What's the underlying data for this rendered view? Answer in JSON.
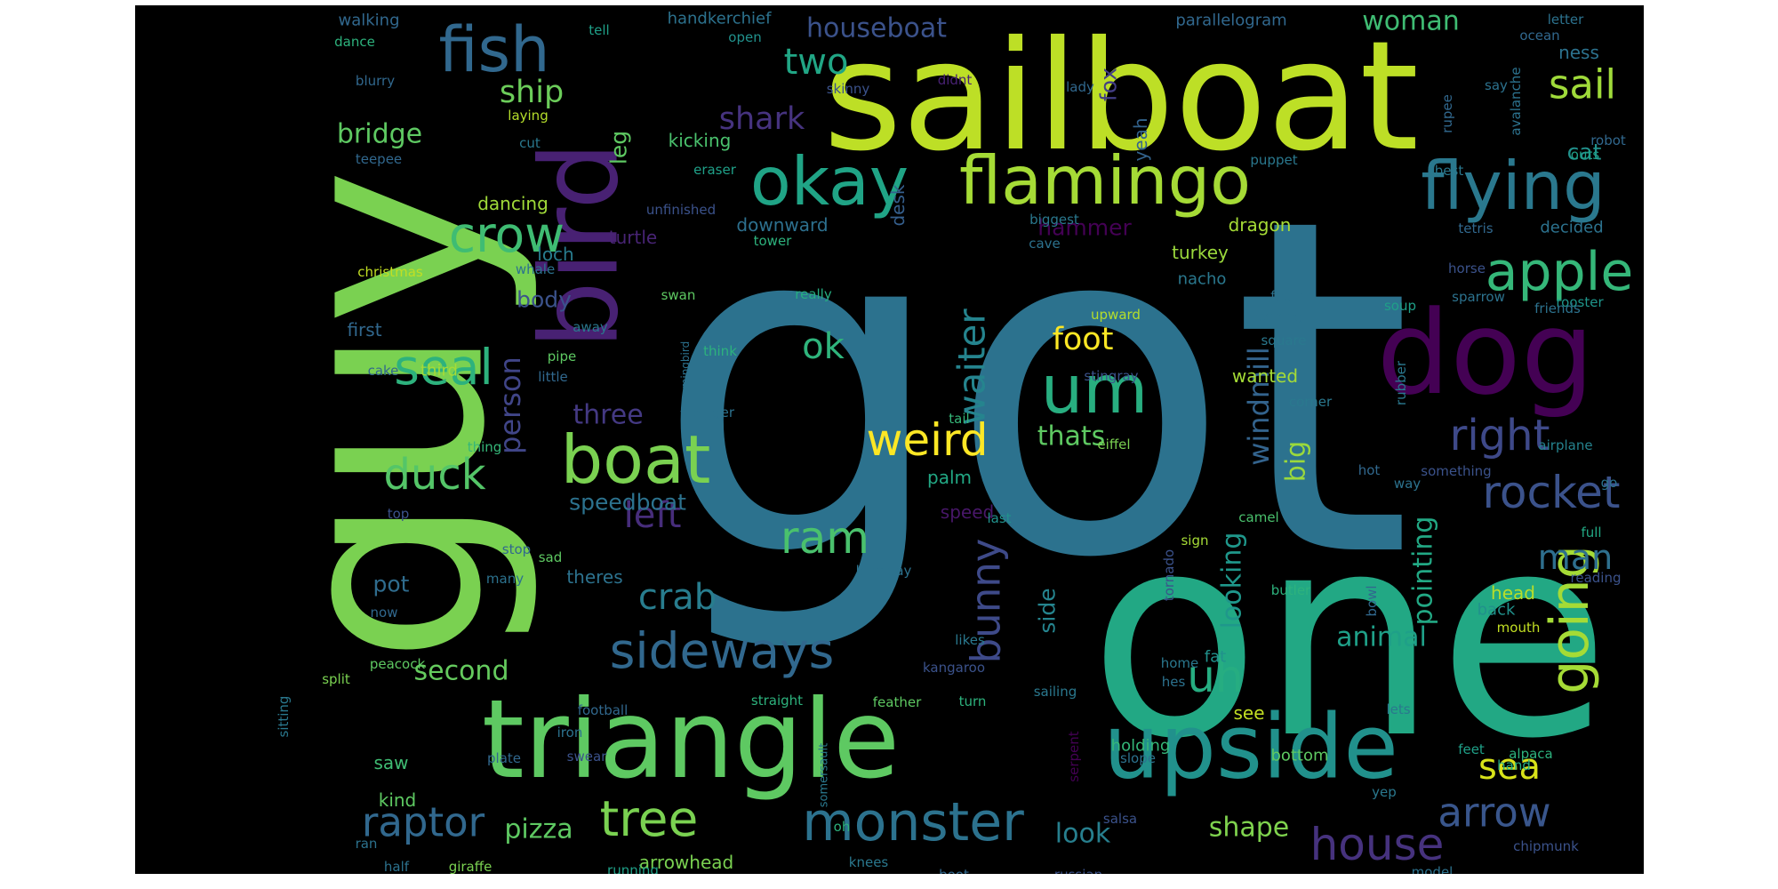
{
  "wordcloud": {
    "background": "#000000",
    "palette": "viridis",
    "words": [
      {
        "text": "got",
        "color": "#2c728e"
      },
      {
        "text": "one",
        "color": "#22a884"
      },
      {
        "text": "guy",
        "color": "#7ad151"
      },
      {
        "text": "sailboat",
        "color": "#bddf26"
      },
      {
        "text": "triangle",
        "color": "#5ec962"
      },
      {
        "text": "upside",
        "color": "#21918c"
      },
      {
        "text": "dog",
        "color": "#440154"
      },
      {
        "text": "bird",
        "color": "#482173"
      },
      {
        "text": "flamingo",
        "color": "#a5db36"
      },
      {
        "text": "flying",
        "color": "#2a788e"
      },
      {
        "text": "okay",
        "color": "#20a486"
      },
      {
        "text": "boat",
        "color": "#7ad151"
      },
      {
        "text": "um",
        "color": "#28ae80"
      },
      {
        "text": "monster",
        "color": "#2c728e"
      },
      {
        "text": "fish",
        "color": "#31688e"
      },
      {
        "text": "apple",
        "color": "#35b779"
      },
      {
        "text": "crow",
        "color": "#3fbc73"
      },
      {
        "text": "seal",
        "color": "#2db27d"
      },
      {
        "text": "going",
        "color": "#a5db36"
      },
      {
        "text": "rocket",
        "color": "#3b528b"
      },
      {
        "text": "sideways",
        "color": "#31688e"
      },
      {
        "text": "tree",
        "color": "#7ad151"
      },
      {
        "text": "house",
        "color": "#46327e"
      },
      {
        "text": "raptor",
        "color": "#31688e"
      },
      {
        "text": "arrow",
        "color": "#39568c"
      },
      {
        "text": "ram",
        "color": "#4ac16d"
      },
      {
        "text": "weird",
        "color": "#fde725"
      },
      {
        "text": "right",
        "color": "#3e4989"
      },
      {
        "text": "duck",
        "color": "#54c568"
      },
      {
        "text": "sail",
        "color": "#9fda3a"
      },
      {
        "text": "uh",
        "color": "#26ad81"
      },
      {
        "text": "bunny",
        "color": "#3e4a89"
      },
      {
        "text": "crab",
        "color": "#287d8e"
      },
      {
        "text": "left",
        "color": "#472d7b"
      },
      {
        "text": "ok",
        "color": "#2fb47c"
      },
      {
        "text": "two",
        "color": "#21a685"
      },
      {
        "text": "man",
        "color": "#2e6f8e"
      },
      {
        "text": "sea",
        "color": "#d8e219"
      },
      {
        "text": "waiter",
        "color": "#25848e"
      },
      {
        "text": "shark",
        "color": "#46337f"
      },
      {
        "text": "person",
        "color": "#404588"
      },
      {
        "text": "windmill",
        "color": "#33638d"
      },
      {
        "text": "ship",
        "color": "#6ccd5a"
      },
      {
        "text": "animal",
        "color": "#1fa088"
      },
      {
        "text": "shape",
        "color": "#7fd34e"
      },
      {
        "text": "pizza",
        "color": "#5ec962"
      },
      {
        "text": "second",
        "color": "#65cb5e"
      },
      {
        "text": "pointing",
        "color": "#22a884"
      },
      {
        "text": "bridge",
        "color": "#5ec962"
      },
      {
        "text": "woman",
        "color": "#3fbc73"
      },
      {
        "text": "look",
        "color": "#277f8e"
      },
      {
        "text": "big",
        "color": "#9bd93c"
      },
      {
        "text": "foot",
        "color": "#fde725"
      },
      {
        "text": "houseboat",
        "color": "#3b528b"
      },
      {
        "text": "three",
        "color": "#443983"
      },
      {
        "text": "looking",
        "color": "#1f978b"
      },
      {
        "text": "speedboat",
        "color": "#2c728e"
      },
      {
        "text": "thats",
        "color": "#5ec962"
      },
      {
        "text": "hammer",
        "color": "#440154"
      },
      {
        "text": "body",
        "color": "#3b528b"
      },
      {
        "text": "pot",
        "color": "#2f6c8e"
      },
      {
        "text": "leg",
        "color": "#5ec962"
      },
      {
        "text": "side",
        "color": "#25848e"
      },
      {
        "text": "cat",
        "color": "#21918c"
      },
      {
        "text": "arrowhead",
        "color": "#7ad151"
      },
      {
        "text": "loch",
        "color": "#287c8e"
      },
      {
        "text": "fox",
        "color": "#433e85"
      },
      {
        "text": "dancing",
        "color": "#a0da39"
      },
      {
        "text": "first",
        "color": "#31688e"
      },
      {
        "text": "downward",
        "color": "#2d708e"
      },
      {
        "text": "saw",
        "color": "#3fbc73"
      },
      {
        "text": "kind",
        "color": "#5ec962"
      },
      {
        "text": "palm",
        "color": "#22a884"
      },
      {
        "text": "yeah",
        "color": "#33638d"
      },
      {
        "text": "turtle",
        "color": "#482475"
      },
      {
        "text": "desk",
        "color": "#355f8d"
      },
      {
        "text": "turkey",
        "color": "#9bd93c"
      },
      {
        "text": "nacho",
        "color": "#2a788e"
      },
      {
        "text": "dragon",
        "color": "#a5db36"
      },
      {
        "text": "wanted",
        "color": "#a5db36"
      },
      {
        "text": "kicking",
        "color": "#4ac16d"
      },
      {
        "text": "see",
        "color": "#c2df23"
      },
      {
        "text": "theres",
        "color": "#2c728e"
      },
      {
        "text": "speed",
        "color": "#481769"
      },
      {
        "text": "ness",
        "color": "#2c728e"
      },
      {
        "text": "walking",
        "color": "#31688e"
      },
      {
        "text": "handkerchief",
        "color": "#2c728e"
      },
      {
        "text": "parallelogram",
        "color": "#31688e"
      },
      {
        "text": "decided",
        "color": "#2c728e"
      },
      {
        "text": "head",
        "color": "#b8de29"
      },
      {
        "text": "back",
        "color": "#21918c"
      },
      {
        "text": "fat",
        "color": "#21918c"
      },
      {
        "text": "bottom",
        "color": "#5ec962"
      },
      {
        "text": "holding",
        "color": "#35b779"
      },
      {
        "text": "christmas",
        "color": "#c2df23"
      },
      {
        "text": "sad",
        "color": "#5ec962"
      },
      {
        "text": "mouth",
        "color": "#c2df23"
      },
      {
        "text": "camel",
        "color": "#4ac16d"
      },
      {
        "text": "tetris",
        "color": "#31688e"
      },
      {
        "text": "away",
        "color": "#2a788e"
      },
      {
        "text": "peacock",
        "color": "#5ec962"
      },
      {
        "text": "sparrow",
        "color": "#2c728e"
      },
      {
        "text": "coming",
        "color": "#2c728e"
      },
      {
        "text": "square",
        "color": "#2a788e"
      },
      {
        "text": "rooster",
        "color": "#1f968b"
      },
      {
        "text": "swan",
        "color": "#5ec962"
      },
      {
        "text": "pipe",
        "color": "#5ec962"
      },
      {
        "text": "cake",
        "color": "#31688e"
      },
      {
        "text": "third",
        "color": "#a5db36"
      },
      {
        "text": "think",
        "color": "#2db27d"
      },
      {
        "text": "thing",
        "color": "#35b779"
      },
      {
        "text": "cut",
        "color": "#2a788e"
      },
      {
        "text": "really",
        "color": "#26ad81"
      },
      {
        "text": "stingray",
        "color": "#3b528b"
      },
      {
        "text": "upward",
        "color": "#b5de2b"
      },
      {
        "text": "soup",
        "color": "#1fa088"
      },
      {
        "text": "corner",
        "color": "#2a788e"
      },
      {
        "text": "eiffel",
        "color": "#7ad151"
      },
      {
        "text": "airplane",
        "color": "#25838e"
      },
      {
        "text": "tail",
        "color": "#35b779"
      },
      {
        "text": "last",
        "color": "#21918c"
      },
      {
        "text": "serpent",
        "color": "#440154"
      },
      {
        "text": "rubber",
        "color": "#2a788e"
      },
      {
        "text": "butler",
        "color": "#2db27d"
      },
      {
        "text": "sign",
        "color": "#a5db36"
      },
      {
        "text": "full",
        "color": "#22a884"
      },
      {
        "text": "laying",
        "color": "#b5de2b"
      },
      {
        "text": "teepee",
        "color": "#31688e"
      },
      {
        "text": "eraser",
        "color": "#1fa088"
      },
      {
        "text": "unfinished",
        "color": "#3b528b"
      },
      {
        "text": "biggest",
        "color": "#2a788e"
      },
      {
        "text": "tower",
        "color": "#2db27d"
      },
      {
        "text": "cave",
        "color": "#2c728e"
      },
      {
        "text": "whale",
        "color": "#2c728e"
      },
      {
        "text": "hummingbird",
        "color": "#2c728e"
      },
      {
        "text": "little",
        "color": "#31688e"
      },
      {
        "text": "bigger",
        "color": "#2c728e"
      },
      {
        "text": "fourth",
        "color": "#2c728e"
      },
      {
        "text": "friends",
        "color": "#2c728e"
      },
      {
        "text": "horse",
        "color": "#3b528b"
      },
      {
        "text": "robot",
        "color": "#31688e"
      },
      {
        "text": "outs",
        "color": "#1fa088"
      },
      {
        "text": "best",
        "color": "#2a788e"
      },
      {
        "text": "puppet",
        "color": "#2a788e"
      },
      {
        "text": "rupee",
        "color": "#31688e"
      },
      {
        "text": "lady",
        "color": "#31688e"
      },
      {
        "text": "didnt",
        "color": "#482173"
      },
      {
        "text": "skinny",
        "color": "#3b528b"
      },
      {
        "text": "tell",
        "color": "#1fa088"
      },
      {
        "text": "open",
        "color": "#21918c"
      },
      {
        "text": "dance",
        "color": "#2db27d"
      },
      {
        "text": "blurry",
        "color": "#31688e"
      },
      {
        "text": "say",
        "color": "#2c728e"
      },
      {
        "text": "letter",
        "color": "#2c728e"
      },
      {
        "text": "ocean",
        "color": "#31688e"
      },
      {
        "text": "avalanche",
        "color": "#2c728e"
      },
      {
        "text": "top",
        "color": "#3b528b"
      },
      {
        "text": "stop",
        "color": "#31688e"
      },
      {
        "text": "many",
        "color": "#2c728e"
      },
      {
        "text": "now",
        "color": "#31688e"
      },
      {
        "text": "split",
        "color": "#7ad151"
      },
      {
        "text": "sitting",
        "color": "#2a788e"
      },
      {
        "text": "football",
        "color": "#31688e"
      },
      {
        "text": "iron",
        "color": "#2c728e"
      },
      {
        "text": "swear",
        "color": "#3b528b"
      },
      {
        "text": "plate",
        "color": "#31688e"
      },
      {
        "text": "ran",
        "color": "#2c728e"
      },
      {
        "text": "half",
        "color": "#2c728e"
      },
      {
        "text": "giraffe",
        "color": "#7ad151"
      },
      {
        "text": "running",
        "color": "#1fa088"
      },
      {
        "text": "knees",
        "color": "#2a788e"
      },
      {
        "text": "boot",
        "color": "#31688e"
      },
      {
        "text": "russian",
        "color": "#3b528b"
      },
      {
        "text": "model",
        "color": "#2c728e"
      },
      {
        "text": "chipmunk",
        "color": "#3b528b"
      },
      {
        "text": "yep",
        "color": "#2a788e"
      },
      {
        "text": "hand",
        "color": "#26ad81"
      },
      {
        "text": "feet",
        "color": "#1fa088"
      },
      {
        "text": "alpaca",
        "color": "#2db27d"
      },
      {
        "text": "bowl",
        "color": "#31688e"
      },
      {
        "text": "lets",
        "color": "#2a788e"
      },
      {
        "text": "oh",
        "color": "#2db27d"
      },
      {
        "text": "somersault",
        "color": "#2a788e"
      },
      {
        "text": "salsa",
        "color": "#3b528b"
      },
      {
        "text": "slope",
        "color": "#2c728e"
      },
      {
        "text": "turn",
        "color": "#2db27d"
      },
      {
        "text": "sailing",
        "color": "#2a788e"
      },
      {
        "text": "feather",
        "color": "#5ec962"
      },
      {
        "text": "straight",
        "color": "#2db27d"
      },
      {
        "text": "kangaroo",
        "color": "#3b528b"
      },
      {
        "text": "likes",
        "color": "#2a788e"
      },
      {
        "text": "home",
        "color": "#2a788e"
      },
      {
        "text": "hes",
        "color": "#2c728e"
      },
      {
        "text": "tornado",
        "color": "#3b528b"
      },
      {
        "text": "birthday",
        "color": "#2c728e"
      },
      {
        "text": "reading",
        "color": "#3b528b"
      },
      {
        "text": "go",
        "color": "#2c728e"
      },
      {
        "text": "hot",
        "color": "#31688e"
      },
      {
        "text": "way",
        "color": "#2c728e"
      },
      {
        "text": "something",
        "color": "#3b528b"
      }
    ]
  }
}
